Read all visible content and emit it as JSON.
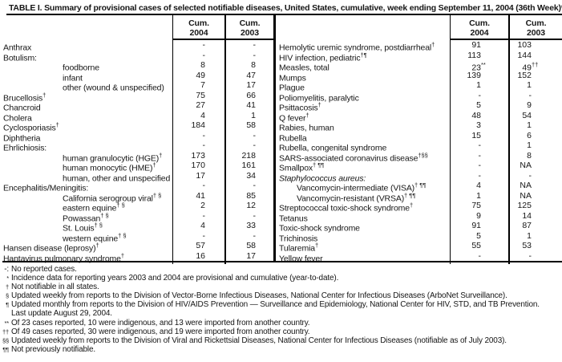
{
  "title": "TABLE I. Summary of provisional cases of selected notifiable diseases, United States, cumulative, week ending September 11, 2004 (36th Week)*",
  "colors": {
    "text": "#161616",
    "border": "#000000",
    "background": "#ffffff"
  },
  "table": {
    "header": {
      "cum": "Cum.",
      "y2004": "2004",
      "y2003": "2003"
    },
    "left_rows": [
      {
        "label": "Anthrax",
        "v04": "-",
        "v03": "-"
      },
      {
        "label": "Botulism:",
        "v04": "-",
        "v03": "-"
      },
      {
        "label": "foodborne",
        "indent": true,
        "v04": "8",
        "v03": "8"
      },
      {
        "label": "infant",
        "indent": true,
        "v04": "49",
        "v03": "47"
      },
      {
        "label": "other (wound & unspecified)",
        "indent": true,
        "v04": "7",
        "v03": "17"
      },
      {
        "label": "Brucellosis",
        "sup": "†",
        "v04": "75",
        "v03": "66"
      },
      {
        "label": "Chancroid",
        "v04": "27",
        "v03": "41"
      },
      {
        "label": "Cholera",
        "v04": "4",
        "v03": "1"
      },
      {
        "label": "Cyclosporiasis",
        "sup": "†",
        "v04": "184",
        "v03": "58"
      },
      {
        "label": "Diphtheria",
        "v04": "-",
        "v03": "-"
      },
      {
        "label": "Ehrlichiosis:",
        "v04": "-",
        "v03": "-"
      },
      {
        "label": "human granulocytic (HGE)",
        "sup": "†",
        "indent": true,
        "v04": "173",
        "v03": "218"
      },
      {
        "label": "human monocytic (HME)",
        "sup": "†",
        "indent": true,
        "v04": "170",
        "v03": "161"
      },
      {
        "label": "human, other and unspecified",
        "indent": true,
        "v04": "17",
        "v03": "34"
      },
      {
        "label": "Encephalitis/Meningitis:",
        "v04": "-",
        "v03": "-"
      },
      {
        "label": "California serogroup viral",
        "sup": "† §",
        "indent": true,
        "v04": "41",
        "v03": "85"
      },
      {
        "label": "eastern equine",
        "sup": "† §",
        "indent": true,
        "v04": "2",
        "v03": "12"
      },
      {
        "label": "Powassan",
        "sup": "† §",
        "indent": true,
        "v04": "-",
        "v03": "-"
      },
      {
        "label": "St. Louis",
        "sup": "† §",
        "indent": true,
        "v04": "4",
        "v03": "33"
      },
      {
        "label": "western equine",
        "sup": "† §",
        "indent": true,
        "v04": "-",
        "v03": "-"
      },
      {
        "label": "Hansen disease (leprosy)",
        "sup": "†",
        "v04": "57",
        "v03": "58"
      },
      {
        "label": "Hantavirus pulmonary syndrome",
        "sup": "†",
        "v04": "16",
        "v03": "17"
      }
    ],
    "right_rows": [
      {
        "label": "Hemolytic uremic syndrome, postdiarrheal",
        "sup": "†",
        "v04": "91",
        "v03": "103"
      },
      {
        "label": "HIV infection, pediatric",
        "sup": "†¶",
        "v04": "113",
        "v03": "144"
      },
      {
        "label": "Measles, total",
        "v04": "23",
        "v04s": "**",
        "v03": "49",
        "v03s": "††"
      },
      {
        "label": "Mumps",
        "v04": "139",
        "v03": "152"
      },
      {
        "label": "Plague",
        "v04": "1",
        "v03": "1"
      },
      {
        "label": "Poliomyelitis, paralytic",
        "v04": "-",
        "v03": "-"
      },
      {
        "label": "Psittacosis",
        "sup": "†",
        "v04": "5",
        "v03": "9"
      },
      {
        "label": "Q fever",
        "sup": "†",
        "v04": "48",
        "v03": "54"
      },
      {
        "label": "Rabies, human",
        "v04": "3",
        "v03": "1"
      },
      {
        "label": "Rubella",
        "v04": "15",
        "v03": "6"
      },
      {
        "label": "Rubella, congenital syndrome",
        "v04": "-",
        "v03": "1"
      },
      {
        "label": "SARS-associated coronavirus disease",
        "sup": "†§§",
        "v04": "-",
        "v03": "8"
      },
      {
        "label": "Smallpox",
        "sup": "† ¶¶",
        "v04": "-",
        "v03": "NA"
      },
      {
        "label": "Staphylococcus aureus:",
        "italic": true,
        "v04": "-",
        "v03": "-"
      },
      {
        "label": "Vancomycin-intermediate (VISA)",
        "sup": "† ¶¶",
        "indent": true,
        "v04": "4",
        "v03": "NA"
      },
      {
        "label": "Vancomycin-resistant (VRSA)",
        "sup": "† ¶¶",
        "indent": true,
        "v04": "1",
        "v03": "NA"
      },
      {
        "label": "Streptococcal toxic-shock syndrome",
        "sup": "†",
        "v04": "75",
        "v03": "125"
      },
      {
        "label": "Tetanus",
        "v04": "9",
        "v03": "14"
      },
      {
        "label": "Toxic-shock syndrome",
        "v04": "91",
        "v03": "87"
      },
      {
        "label": "Trichinosis",
        "v04": "5",
        "v03": "1"
      },
      {
        "label": "Tularemia",
        "sup": "†",
        "v04": "55",
        "v03": "53"
      },
      {
        "label": "Yellow fever",
        "v04": "-",
        "v03": "-"
      }
    ]
  },
  "footnotes": [
    {
      "marker": "-:",
      "style": "plain",
      "text": "No reported cases."
    },
    {
      "marker": "*",
      "style": "sup",
      "text": "Incidence data for reporting years 2003 and 2004 are provisional and cumulative (year-to-date)."
    },
    {
      "marker": "†",
      "style": "sup",
      "text": "Not notifiable in all states."
    },
    {
      "marker": "§",
      "style": "sup",
      "text": "Updated weekly from reports to the Division of Vector-Borne Infectious Diseases, National Center for Infectious Diseases (ArboNet Surveillance)."
    },
    {
      "marker": "¶",
      "style": "sup",
      "text": "Updated monthly from reports to the Division of HIV/AIDS Prevention — Surveillance and Epidemiology, National Center for HIV, STD, and TB Prevention."
    },
    {
      "marker": "",
      "style": "plain",
      "text": "Last update August 29, 2004."
    },
    {
      "marker": "**",
      "style": "sup",
      "text": "Of 23 cases reported, 10 were indigenous, and 13 were imported from another country."
    },
    {
      "marker": "††",
      "style": "sup",
      "text": "Of 49 cases reported, 30 were indigenous, and 19 were imported from another country."
    },
    {
      "marker": "§§",
      "style": "sup",
      "text": "Updated weekly from reports to the Division of Viral and Rickettsial Diseases, National Center for Infectious Diseases (notifiable as of July 2003)."
    },
    {
      "marker": "¶¶",
      "style": "sup",
      "text": "Not previously notifiable."
    }
  ]
}
